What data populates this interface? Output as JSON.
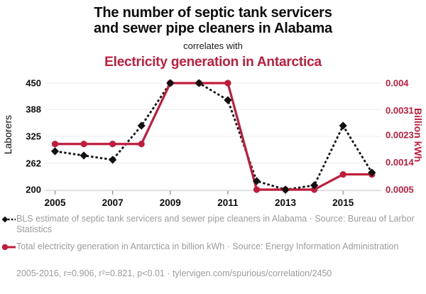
{
  "header": {
    "title_line1": "The number of septic tank servicers",
    "title_line2": "and sewer pipe cleaners in Alabama",
    "connector": "correlates with",
    "subtitle": "Electricity generation in Antarctica"
  },
  "colors": {
    "accent_red": "#c01d3c",
    "series_black": "#111111",
    "text_gray": "#9b9b9b",
    "grid": "#ececec",
    "axis_line": "#d2d2d2",
    "tick_mark": "#8c8c8c"
  },
  "chart_data": {
    "type": "line",
    "title": "The number of septic tank servicers and sewer pipe cleaners in Alabama correlates with Electricity generation in Antarctica",
    "x": [
      2005,
      2006,
      2007,
      2008,
      2009,
      2010,
      2011,
      2012,
      2013,
      2014,
      2015,
      2016
    ],
    "x_tick_labels": [
      "2005",
      "2007",
      "2009",
      "2011",
      "2013",
      "2015"
    ],
    "grid": true,
    "legend_position": "bottom",
    "left_axis": {
      "label": "Laborers",
      "min": 200,
      "max": 450,
      "ticks": [
        200,
        262,
        325,
        388,
        450
      ],
      "tick_labels": [
        "200",
        "262",
        "325",
        "388",
        "450"
      ]
    },
    "right_axis": {
      "label": "Billion kWh",
      "min": 0.0005,
      "max": 0.004,
      "ticks": [
        0.0005,
        0.0014,
        0.0023,
        0.0031,
        0.004
      ],
      "tick_labels": [
        "0.0005",
        "0.0014",
        "0.0023",
        "0.0031",
        "0.004"
      ]
    },
    "series": [
      {
        "name": "BLS estimate of septic tank servicers and sewer pipe cleaners in Alabama",
        "axis": "left",
        "color": "#111111",
        "line_style": "dashed",
        "marker": "diamond",
        "values": [
          290,
          280,
          270,
          350,
          450,
          450,
          410,
          220,
          200,
          210,
          350,
          240
        ]
      },
      {
        "name": "Total electricity generation in Antarctica in billion kWh",
        "axis": "right",
        "color": "#c01d3c",
        "line_style": "solid",
        "marker": "circle",
        "values": [
          0.002,
          0.002,
          0.002,
          0.002,
          0.004,
          0.004,
          0.004,
          0.0005,
          0.0005,
          0.0005,
          0.001,
          0.001
        ]
      }
    ]
  },
  "legend": {
    "series1": "BLS estimate of septic tank servicers and sewer pipe cleaners in Alabama · Source: Bureau of Larbor Statistics",
    "series2": "Total electricity generation in Antarctica in billion kWh · Source: Energy Information Administration"
  },
  "footer": {
    "text": "2005-2016, r=0.906, r²=0.821, p<0.01 · tylervigen.com/spurious/correlation/2450"
  }
}
